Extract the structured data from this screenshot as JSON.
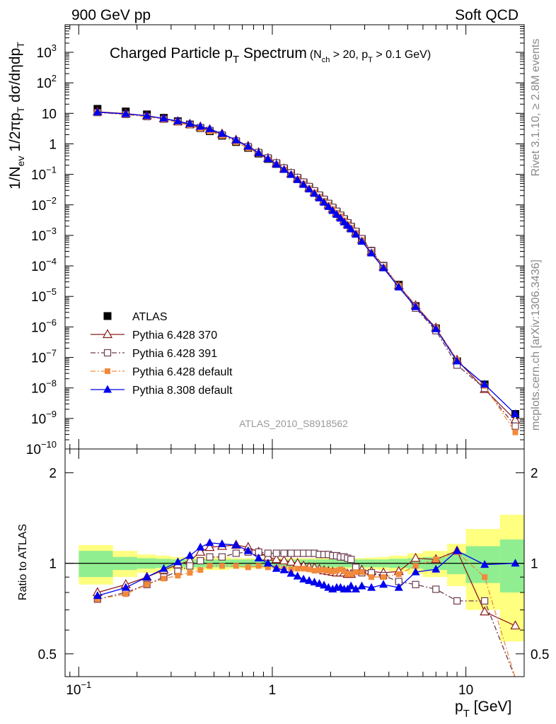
{
  "header": {
    "left": "900 GeV pp",
    "right": "Soft QCD"
  },
  "side_text": {
    "rivet": "Rivet 3.1.10, ≥ 2.8M events",
    "mcplots": "mcplots.cern.ch [arXiv:1306.3436]"
  },
  "chart_data": [
    {
      "type": "line",
      "panel": "main",
      "title_main": "Charged Particle p",
      "title_sub_T": "T",
      "title_tail": " Spectrum",
      "title_cond": "(N",
      "title_cond_ch": "ch",
      "title_cond_mid": " > 20, p",
      "title_cond_T": "T",
      "title_cond_end": " > 0.1 GeV)",
      "ylabel_parts": [
        "1/N",
        "ev",
        " 1/2πp",
        "T",
        " dσ/dηdp",
        "T"
      ],
      "watermark": "ATLAS_2010_S8918562",
      "x_scale": "log",
      "y_scale": "log",
      "xlim": [
        0.085,
        20
      ],
      "ylim": [
        1e-10,
        8000
      ],
      "y_ticks": [
        {
          "v": 1e-10,
          "b": "10",
          "e": "−10"
        },
        {
          "v": 1e-09,
          "b": "10",
          "e": "−9"
        },
        {
          "v": 1e-08,
          "b": "10",
          "e": "−8"
        },
        {
          "v": 1e-07,
          "b": "10",
          "e": "−7"
        },
        {
          "v": 1e-06,
          "b": "10",
          "e": "−6"
        },
        {
          "v": 1e-05,
          "b": "10",
          "e": "−5"
        },
        {
          "v": 0.0001,
          "b": "10",
          "e": "−4"
        },
        {
          "v": 0.001,
          "b": "10",
          "e": "−3"
        },
        {
          "v": 0.01,
          "b": "10",
          "e": "−2"
        },
        {
          "v": 0.1,
          "b": "10",
          "e": "−1"
        },
        {
          "v": 1,
          "b": "1",
          "e": ""
        },
        {
          "v": 10,
          "b": "10",
          "e": ""
        },
        {
          "v": 100,
          "b": "10",
          "e": "2"
        },
        {
          "v": 1000,
          "b": "10",
          "e": "3"
        }
      ],
      "x": [
        0.125,
        0.175,
        0.225,
        0.275,
        0.325,
        0.375,
        0.425,
        0.475,
        0.55,
        0.65,
        0.75,
        0.85,
        0.95,
        1.05,
        1.15,
        1.25,
        1.35,
        1.45,
        1.55,
        1.65,
        1.75,
        1.85,
        1.95,
        2.05,
        2.15,
        2.25,
        2.35,
        2.45,
        2.55,
        2.7,
        2.9,
        3.25,
        3.75,
        4.5,
        5.5,
        7.0,
        9.0,
        12.5,
        18.0
      ],
      "legend": [
        {
          "name": "ATLAS",
          "color": "#000000",
          "marker": "square-filled",
          "line": "none"
        },
        {
          "name": "Pythia 6.428 370",
          "color": "#8b1a1a",
          "marker": "triangle-open",
          "line": "solid"
        },
        {
          "name": "Pythia 6.428 391",
          "color": "#6b3b50",
          "marker": "square-open",
          "line": "dashdot"
        },
        {
          "name": "Pythia 6.428 default",
          "color": "#f28a3c",
          "marker": "square-filled-small",
          "line": "dashdot"
        },
        {
          "name": "Pythia 8.308 default",
          "color": "#0000ee",
          "marker": "triangle-filled",
          "line": "solid"
        }
      ],
      "series": [
        {
          "name": "ATLAS",
          "values": [
            14,
            11.5,
            9.2,
            7.1,
            5.5,
            4.3,
            3.3,
            2.6,
            1.85,
            1.15,
            0.74,
            0.48,
            0.32,
            0.22,
            0.15,
            0.105,
            0.073,
            0.052,
            0.037,
            0.027,
            0.0195,
            0.0142,
            0.0105,
            0.0078,
            0.0058,
            0.0044,
            0.0033,
            0.0025,
            0.0019,
            0.0013,
            0.00075,
            0.00031,
            0.0001,
            2.4e-05,
            4.8e-06,
            9e-07,
            7.5e-08,
            1.3e-08,
            1.4e-09
          ]
        },
        {
          "name": "Pythia 6.428 370",
          "values": [
            11.2,
            9.8,
            8.3,
            6.7,
            5.4,
            4.4,
            3.6,
            2.95,
            2.12,
            1.33,
            0.84,
            0.52,
            0.335,
            0.227,
            0.153,
            0.106,
            0.073,
            0.051,
            0.036,
            0.026,
            0.0186,
            0.0134,
            0.0099,
            0.0073,
            0.0054,
            0.0041,
            0.0031,
            0.0023,
            0.00175,
            0.00122,
            0.00071,
            0.00029,
            9.3e-05,
            2.25e-05,
            5e-06,
            9.3e-07,
            8.2e-08,
            9e-09,
            9e-10
          ]
        },
        {
          "name": "Pythia 6.428 391",
          "values": [
            10.6,
            9.2,
            7.8,
            6.4,
            5.2,
            4.2,
            3.4,
            2.75,
            1.95,
            1.25,
            0.81,
            0.52,
            0.345,
            0.237,
            0.162,
            0.113,
            0.079,
            0.056,
            0.04,
            0.029,
            0.0209,
            0.0152,
            0.0112,
            0.0083,
            0.0062,
            0.0046,
            0.0035,
            0.0026,
            0.00195,
            0.00135,
            0.00078,
            0.00031,
            0.0001,
            2.15e-05,
            4.1e-06,
            7.5e-07,
            5.6e-08,
            9.7e-09,
            5.6e-10
          ]
        },
        {
          "name": "Pythia 6.428 default",
          "values": [
            10.6,
            9.1,
            7.8,
            6.3,
            5.0,
            4.0,
            3.15,
            2.55,
            1.82,
            1.13,
            0.72,
            0.47,
            0.31,
            0.212,
            0.144,
            0.1,
            0.07,
            0.05,
            0.035,
            0.0255,
            0.0185,
            0.0135,
            0.0099,
            0.0073,
            0.0055,
            0.0042,
            0.0031,
            0.0023,
            0.00175,
            0.0012,
            0.0007,
            0.00028,
            9e-05,
            2.2e-05,
            4.7e-06,
            9.3e-07,
            8.2e-08,
            1.17e-08,
            3.5e-10
          ]
        },
        {
          "name": "Pythia 8.308 default",
          "values": [
            10.9,
            9.6,
            8.3,
            6.8,
            5.55,
            4.55,
            3.72,
            3.05,
            2.15,
            1.32,
            0.82,
            0.5,
            0.32,
            0.212,
            0.142,
            0.097,
            0.066,
            0.046,
            0.0325,
            0.0233,
            0.0166,
            0.012,
            0.0087,
            0.0064,
            0.0048,
            0.0036,
            0.0027,
            0.0021,
            0.0016,
            0.00107,
            0.00063,
            0.00026,
            8.5e-05,
            2e-05,
            4.5e-06,
            8.6e-07,
            7.5e-08,
            1.3e-08,
            1.4e-09
          ]
        }
      ]
    },
    {
      "type": "line",
      "panel": "ratio",
      "ylabel": "Ratio to ATLAS",
      "xlabel_main": "p",
      "xlabel_sub": "T",
      "xlabel_unit": "  [GeV]",
      "x_scale": "log",
      "y_scale": "log",
      "xlim": [
        0.085,
        20
      ],
      "ylim": [
        0.42,
        2.4
      ],
      "y_ticks": [
        {
          "v": 0.5,
          "label": "0.5"
        },
        {
          "v": 1,
          "label": "1"
        },
        {
          "v": 2,
          "label": "2"
        }
      ],
      "x_ticks": [
        {
          "v": 0.1,
          "b": "10",
          "e": "−1"
        },
        {
          "v": 1,
          "b": "1",
          "e": ""
        },
        {
          "v": 10,
          "b": "10",
          "e": ""
        }
      ],
      "x": [
        0.125,
        0.175,
        0.225,
        0.275,
        0.325,
        0.375,
        0.425,
        0.475,
        0.55,
        0.65,
        0.75,
        0.85,
        0.95,
        1.05,
        1.15,
        1.25,
        1.35,
        1.45,
        1.55,
        1.65,
        1.75,
        1.85,
        1.95,
        2.05,
        2.15,
        2.25,
        2.35,
        2.45,
        2.55,
        2.7,
        2.9,
        3.25,
        3.75,
        4.5,
        5.5,
        7.0,
        9.0,
        12.5,
        18.0
      ],
      "band_edges": [
        0.1,
        0.15,
        0.2,
        0.25,
        0.3,
        0.35,
        0.4,
        0.45,
        0.5,
        0.6,
        0.7,
        0.8,
        0.9,
        1.0,
        1.1,
        1.2,
        1.3,
        1.4,
        1.5,
        1.6,
        1.7,
        1.8,
        1.9,
        2.0,
        2.1,
        2.2,
        2.3,
        2.4,
        2.5,
        2.6,
        2.8,
        3.0,
        3.5,
        4.0,
        5.0,
        6.0,
        8.0,
        10.0,
        15.0,
        20.0
      ],
      "band_green": [
        0.1,
        0.05,
        0.04,
        0.035,
        0.03,
        0.03,
        0.03,
        0.03,
        0.03,
        0.03,
        0.03,
        0.03,
        0.03,
        0.03,
        0.03,
        0.03,
        0.03,
        0.03,
        0.03,
        0.03,
        0.03,
        0.03,
        0.03,
        0.03,
        0.03,
        0.03,
        0.03,
        0.03,
        0.03,
        0.03,
        0.03,
        0.03,
        0.03,
        0.035,
        0.04,
        0.05,
        0.08,
        0.14,
        0.2
      ],
      "band_yellow": [
        0.15,
        0.1,
        0.07,
        0.06,
        0.05,
        0.05,
        0.05,
        0.05,
        0.05,
        0.04,
        0.04,
        0.04,
        0.04,
        0.04,
        0.04,
        0.04,
        0.04,
        0.04,
        0.04,
        0.04,
        0.04,
        0.04,
        0.04,
        0.04,
        0.04,
        0.04,
        0.04,
        0.04,
        0.04,
        0.04,
        0.04,
        0.045,
        0.05,
        0.06,
        0.08,
        0.1,
        0.16,
        0.3,
        0.45
      ],
      "series": [
        {
          "name": "Pythia 6.428 370",
          "values": [
            0.8,
            0.85,
            0.9,
            0.95,
            0.99,
            1.02,
            1.09,
            1.13,
            1.14,
            1.15,
            1.13,
            1.09,
            1.05,
            1.03,
            1.02,
            1.01,
            1.0,
            0.98,
            0.97,
            0.965,
            0.955,
            0.945,
            0.94,
            0.935,
            0.93,
            0.93,
            0.93,
            0.92,
            0.92,
            0.94,
            0.95,
            0.94,
            0.93,
            0.94,
            1.04,
            1.03,
            1.1,
            0.69,
            0.62
          ]
        },
        {
          "name": "Pythia 6.428 391",
          "values": [
            0.76,
            0.8,
            0.85,
            0.9,
            0.94,
            0.98,
            1.02,
            1.05,
            1.05,
            1.08,
            1.09,
            1.09,
            1.08,
            1.08,
            1.08,
            1.08,
            1.08,
            1.08,
            1.08,
            1.08,
            1.07,
            1.07,
            1.07,
            1.06,
            1.06,
            1.05,
            1.05,
            1.04,
            1.03,
            0.97,
            0.93,
            0.93,
            0.91,
            0.87,
            0.85,
            0.82,
            0.75,
            0.75,
            0.33
          ]
        },
        {
          "name": "Pythia 6.428 default",
          "values": [
            0.76,
            0.79,
            0.85,
            0.89,
            0.91,
            0.93,
            0.95,
            0.98,
            0.98,
            0.98,
            0.97,
            0.98,
            0.97,
            0.965,
            0.96,
            0.955,
            0.96,
            0.96,
            0.955,
            0.945,
            0.95,
            0.95,
            0.945,
            0.94,
            0.945,
            0.955,
            0.94,
            0.92,
            0.92,
            0.935,
            0.935,
            0.9,
            0.9,
            0.92,
            0.98,
            1.03,
            1.09,
            0.9,
            0.25
          ]
        },
        {
          "name": "Pythia 8.308 default",
          "values": [
            0.78,
            0.83,
            0.9,
            0.96,
            1.01,
            1.06,
            1.13,
            1.17,
            1.16,
            1.15,
            1.1,
            1.04,
            1.0,
            0.96,
            0.95,
            0.925,
            0.905,
            0.885,
            0.875,
            0.865,
            0.855,
            0.845,
            0.83,
            0.82,
            0.83,
            0.83,
            0.82,
            0.82,
            0.84,
            0.82,
            0.84,
            0.83,
            0.85,
            0.83,
            0.935,
            0.955,
            1.1,
            0.99,
            1.0
          ]
        }
      ]
    }
  ]
}
